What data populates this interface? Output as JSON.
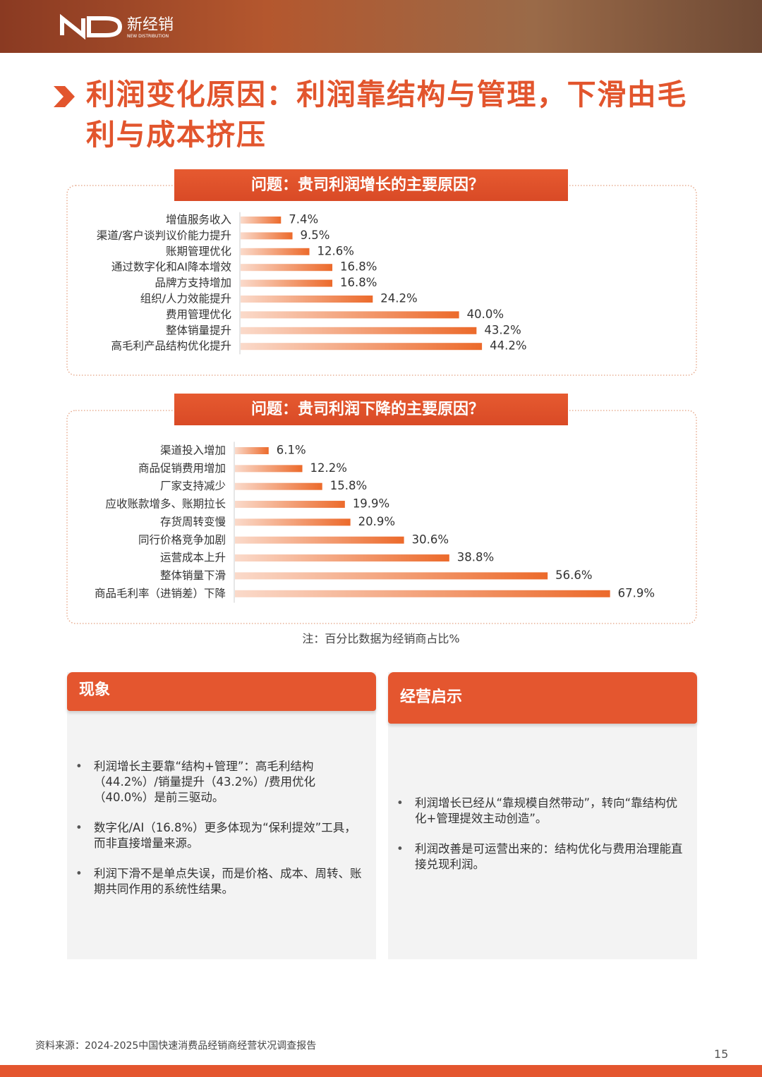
{
  "header": {
    "brand": "新经销",
    "brand_en": "NEW DISTRIBUTION"
  },
  "title": "利润变化原因：利润靠结构与管理，下滑由毛利与成本挤压",
  "chart_data": [
    {
      "type": "bar",
      "orientation": "horizontal",
      "title": "问题：贵司利润增长的主要原因？",
      "categories": [
        "增值服务收入",
        "渠道/客户谈判议价能力提升",
        "账期管理优化",
        "通过数字化和AI降本增效",
        "品牌方支持增加",
        "组织/人力效能提升",
        "费用管理优化",
        "整体销量提升",
        "高毛利产品结构优化提升"
      ],
      "values": [
        7.4,
        9.5,
        12.6,
        16.8,
        16.8,
        24.2,
        40.0,
        43.2,
        44.2
      ],
      "value_labels": [
        "7.4%",
        "9.5%",
        "12.6%",
        "16.8%",
        "16.8%",
        "24.2%",
        "40.0%",
        "43.2%",
        "44.2%"
      ],
      "color": "#ec6a2b"
    },
    {
      "type": "bar",
      "orientation": "horizontal",
      "title": "问题：贵司利润下降的主要原因？",
      "categories": [
        "渠道投入增加",
        "商品促销费用增加",
        "厂家支持减少",
        "应收账款增多、账期拉长",
        "存货周转变慢",
        "同行价格竞争加剧",
        "运营成本上升",
        "整体销量下滑",
        "商品毛利率（进销差）下降"
      ],
      "values": [
        6.1,
        12.2,
        15.8,
        19.9,
        20.9,
        30.6,
        38.8,
        56.6,
        67.9
      ],
      "value_labels": [
        "6.1%",
        "12.2%",
        "15.8%",
        "19.9%",
        "20.9%",
        "30.6%",
        "38.8%",
        "56.6%",
        "67.9%"
      ],
      "color": "#ec6a2b"
    }
  ],
  "note": "注：百分比数据为经销商占比%",
  "panels": [
    {
      "title": "现象",
      "bullets": [
        "利润增长主要靠“结构+管理”：高毛利结构（44.2%）/销量提升（43.2%）/费用优化（40.0%）是前三驱动。",
        "数字化/AI（16.8%）更多体现为“保利提效”工具，而非直接增量来源。",
        "利润下滑不是单点失误，而是价格、成本、周转、账期共同作用的系统性结果。"
      ]
    },
    {
      "title": "经营启示",
      "bullets": [
        "利润增长已经从“靠规模自然带动”，转向“靠结构优化+管理提效主动创造”。",
        "利润改善是可运营出来的：结构优化与费用治理能直接兑现利润。"
      ]
    }
  ],
  "source": "资料来源：2024-2025中国快速消费品经销商经营状况调查报告",
  "page_number": "15"
}
